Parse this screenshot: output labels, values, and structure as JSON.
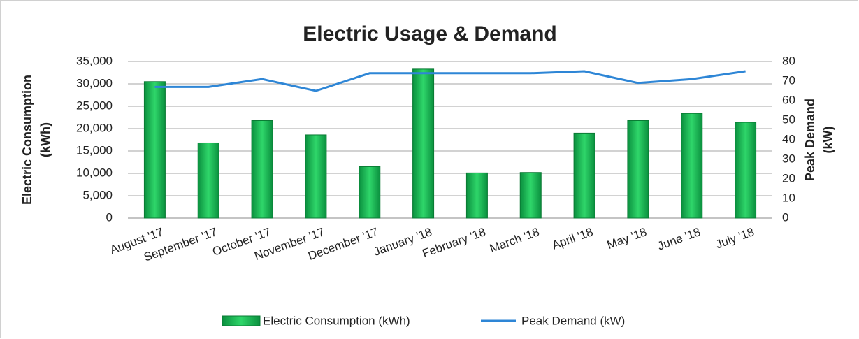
{
  "chart_data": {
    "type": "bar_line",
    "title": "Electric Usage & Demand",
    "ylabel": [
      "Electric Consumption",
      "(kWh)"
    ],
    "y2label": [
      "Peak Demand",
      "(kW)"
    ],
    "categories": [
      "August '17",
      "September '17",
      "October '17",
      "November '17",
      "December '17",
      "January '18",
      "February '18",
      "March '18",
      "April '18",
      "May '18",
      "June '18",
      "July '18"
    ],
    "series": [
      {
        "name": "Electric Consumption (kWh)",
        "color": "#00b050",
        "type": "bar",
        "values": [
          30500,
          16800,
          21800,
          18600,
          11500,
          33300,
          10100,
          10200,
          19000,
          21800,
          23400,
          21400
        ]
      },
      {
        "name": "Peak Demand (kW)",
        "color": "#2e86d6",
        "type": "line",
        "axis": "y2",
        "values": [
          67,
          67,
          71,
          65,
          74,
          74,
          74,
          74,
          75,
          69,
          71,
          75
        ]
      }
    ],
    "ylim": [
      0,
      35000
    ],
    "yticks": [
      0,
      {
        "value": 5000,
        "label": "5,000"
      },
      {
        "value": 10000,
        "label": "10,000"
      },
      {
        "value": 15000,
        "label": "15,000"
      },
      {
        "value": 20000,
        "label": "20,000"
      },
      {
        "value": 25000,
        "label": "25,000"
      },
      {
        "value": 30000,
        "label": "30,000"
      },
      {
        "value": 35000,
        "label": "35,000"
      }
    ],
    "y2lim": [
      0,
      80
    ],
    "y2ticks": [
      0,
      10,
      20,
      30,
      40,
      50,
      60,
      70,
      80
    ],
    "grid": true,
    "legend": "bottom"
  }
}
